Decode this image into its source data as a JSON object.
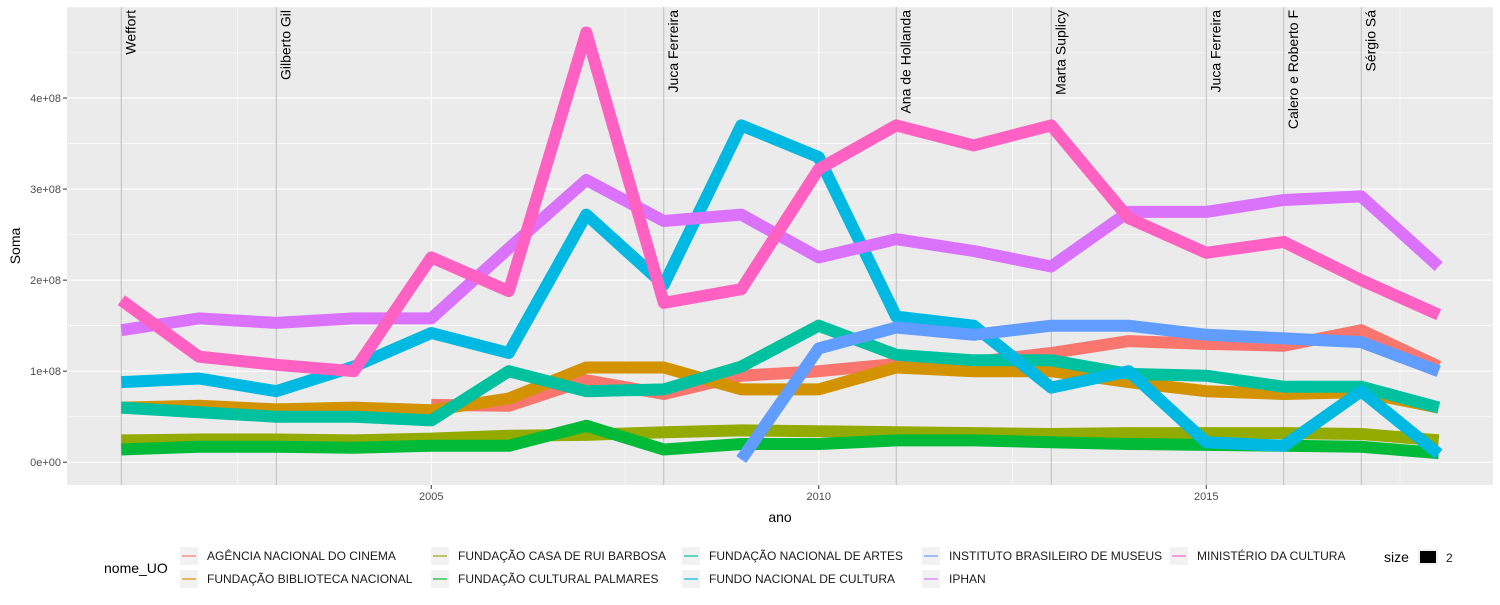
{
  "chart_data": {
    "type": "line",
    "xlabel": "ano",
    "ylabel": "Soma",
    "xlim": [
      2000.3,
      2018.7
    ],
    "ylim": [
      -25000000,
      500000000
    ],
    "x_ticks": [
      2005,
      2010,
      2015
    ],
    "y_ticks": [
      0,
      100000000,
      200000000,
      300000000,
      400000000
    ],
    "y_tick_labels": [
      "0e+00",
      "1e+08",
      "2e+08",
      "3e+08",
      "4e+08"
    ],
    "grid": true,
    "legend_position": "bottom",
    "legend_title": "nome_UO",
    "size_legend": {
      "title": "size",
      "value": "2"
    },
    "vlines": [
      {
        "x": 2001,
        "label": "Weffort"
      },
      {
        "x": 2003,
        "label": "Gilberto Gil"
      },
      {
        "x": 2008,
        "label": "Juca Ferreira"
      },
      {
        "x": 2011,
        "label": "Ana de Hollanda"
      },
      {
        "x": 2013,
        "label": "Marta Suplicy"
      },
      {
        "x": 2015,
        "label": "Juca Ferreira"
      },
      {
        "x": 2016,
        "label": "Calero e Roberto F"
      },
      {
        "x": 2017,
        "label": "Sérgio Sá"
      }
    ],
    "series": [
      {
        "name": "AGÊNCIA NACIONAL DO CINEMA",
        "color": "#F8766D",
        "x": [
          2005,
          2006,
          2007,
          2008,
          2009,
          2010,
          2011,
          2012,
          2013,
          2014,
          2015,
          2016,
          2017,
          2018
        ],
        "values": [
          63000000,
          62000000,
          90000000,
          75000000,
          95000000,
          100000000,
          108000000,
          110000000,
          120000000,
          133000000,
          130000000,
          128000000,
          145000000,
          105000000
        ]
      },
      {
        "name": "FUNDAÇÃO BIBLIOTECA NACIONAL",
        "color": "#D39200",
        "x": [
          2001,
          2002,
          2003,
          2004,
          2005,
          2006,
          2007,
          2008,
          2009,
          2010,
          2011,
          2012,
          2013,
          2014,
          2015,
          2016,
          2017,
          2018
        ],
        "values": [
          60000000,
          62000000,
          58000000,
          60000000,
          57000000,
          70000000,
          104000000,
          104000000,
          80000000,
          80000000,
          104000000,
          100000000,
          100000000,
          88000000,
          78000000,
          75000000,
          77000000,
          60000000
        ]
      },
      {
        "name": "FUNDAÇÃO CASA DE RUI BARBOSA",
        "color": "#93AA00",
        "x": [
          2001,
          2002,
          2003,
          2004,
          2005,
          2006,
          2007,
          2008,
          2009,
          2010,
          2011,
          2012,
          2013,
          2014,
          2015,
          2016,
          2017,
          2018
        ],
        "values": [
          24000000,
          25000000,
          25000000,
          24000000,
          26000000,
          29000000,
          30000000,
          33000000,
          35000000,
          34000000,
          33000000,
          32000000,
          31000000,
          32000000,
          32000000,
          32000000,
          31000000,
          24000000
        ]
      },
      {
        "name": "FUNDAÇÃO CULTURAL PALMARES",
        "color": "#00BA38",
        "x": [
          2001,
          2002,
          2003,
          2004,
          2005,
          2006,
          2007,
          2008,
          2009,
          2010,
          2011,
          2012,
          2013,
          2014,
          2015,
          2016,
          2017,
          2018
        ],
        "values": [
          14000000,
          17000000,
          17000000,
          16000000,
          18000000,
          18000000,
          40000000,
          14000000,
          20000000,
          20000000,
          24000000,
          24000000,
          22000000,
          20000000,
          19000000,
          18000000,
          17000000,
          10000000
        ]
      },
      {
        "name": "FUNDAÇÃO NACIONAL DE ARTES",
        "color": "#00C19F",
        "x": [
          2001,
          2002,
          2003,
          2004,
          2005,
          2006,
          2007,
          2008,
          2009,
          2010,
          2011,
          2012,
          2013,
          2014,
          2015,
          2016,
          2017,
          2018
        ],
        "values": [
          60000000,
          55000000,
          50000000,
          50000000,
          46000000,
          100000000,
          78000000,
          80000000,
          105000000,
          150000000,
          118000000,
          112000000,
          112000000,
          97000000,
          95000000,
          83000000,
          83000000,
          60000000
        ]
      },
      {
        "name": "FUNDO NACIONAL DE CULTURA",
        "color": "#00B9E3",
        "x": [
          2001,
          2002,
          2003,
          2004,
          2005,
          2006,
          2007,
          2008,
          2009,
          2010,
          2011,
          2012,
          2013,
          2014,
          2015,
          2016,
          2017,
          2018
        ],
        "values": [
          88000000,
          92000000,
          78000000,
          105000000,
          142000000,
          120000000,
          272000000,
          195000000,
          370000000,
          335000000,
          160000000,
          150000000,
          82000000,
          100000000,
          22000000,
          18000000,
          78000000,
          9000000
        ]
      },
      {
        "name": "INSTITUTO BRASILEIRO DE MUSEUS",
        "color": "#619CFF",
        "x": [
          2009,
          2010,
          2011,
          2012,
          2013,
          2014,
          2015,
          2016,
          2017,
          2018
        ],
        "values": [
          3000000,
          125000000,
          148000000,
          140000000,
          150000000,
          150000000,
          140000000,
          136000000,
          132000000,
          100000000
        ]
      },
      {
        "name": "IPHAN",
        "color": "#DB72FB",
        "x": [
          2001,
          2002,
          2003,
          2004,
          2005,
          2006,
          2007,
          2008,
          2009,
          2010,
          2011,
          2012,
          2013,
          2014,
          2015,
          2016,
          2017,
          2018
        ],
        "values": [
          145000000,
          158000000,
          153000000,
          158000000,
          158000000,
          235000000,
          310000000,
          265000000,
          272000000,
          225000000,
          245000000,
          232000000,
          215000000,
          275000000,
          275000000,
          288000000,
          292000000,
          215000000
        ]
      },
      {
        "name": "MINISTÉRIO DA CULTURA",
        "color": "#FF61C3",
        "x": [
          2001,
          2002,
          2003,
          2004,
          2005,
          2006,
          2007,
          2008,
          2009,
          2010,
          2011,
          2012,
          2013,
          2014,
          2015,
          2016,
          2017,
          2018
        ],
        "values": [
          178000000,
          116000000,
          107000000,
          100000000,
          225000000,
          188000000,
          472000000,
          175000000,
          190000000,
          322000000,
          370000000,
          348000000,
          370000000,
          268000000,
          230000000,
          242000000,
          200000000,
          162000000
        ]
      }
    ]
  }
}
